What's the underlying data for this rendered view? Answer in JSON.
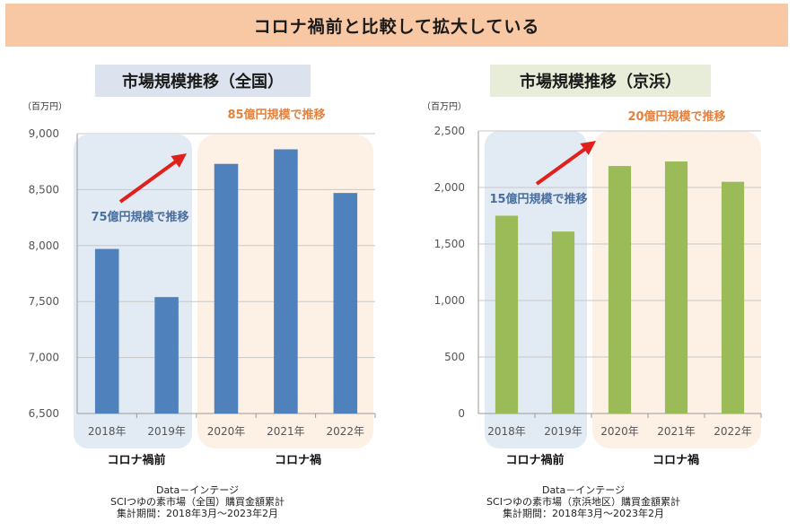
{
  "header": {
    "title": "コロナ禍前と比較して拡大している"
  },
  "colors": {
    "banner_bg": "#f8c8a4",
    "bar_national": "#4f81bd",
    "bar_keihin": "#9bbb59",
    "pre_covid_zone": "#dde6f1",
    "covid_zone": "#fdeee2",
    "blue_note": "#4a6e9c",
    "orange_note": "#e3823e",
    "arrow": "#e0201b"
  },
  "chart_data": [
    {
      "type": "bar",
      "title": "市場規模推移（全国）",
      "unit_label": "（百万円）",
      "categories": [
        "2018年",
        "2019年",
        "2020年",
        "2021年",
        "2022年"
      ],
      "values": [
        7970,
        7540,
        8730,
        8860,
        8470
      ],
      "ylim": [
        6500,
        9000
      ],
      "yticks": [
        6500,
        7000,
        7500,
        8000,
        8500,
        9000
      ],
      "ytick_labels": [
        "6,500",
        "7,000",
        "7,500",
        "8,000",
        "8,500",
        "9,000"
      ],
      "grid": true,
      "annotations": {
        "pre": "75億円規模で推移",
        "post": "85億円規模で推移"
      },
      "period_labels": {
        "pre": "コロナ禍前",
        "post": "コロナ禍"
      },
      "footnote": [
        "Data－インテージ",
        "SCIつゆの素市場（全国）購買金額累計",
        "集計期間：2018年3月～2023年2月"
      ]
    },
    {
      "type": "bar",
      "title": "市場規模推移（京浜）",
      "unit_label": "（百万円）",
      "categories": [
        "2018年",
        "2019年",
        "2020年",
        "2021年",
        "2022年"
      ],
      "values": [
        1750,
        1610,
        2190,
        2230,
        2050
      ],
      "ylim": [
        0,
        2500
      ],
      "yticks": [
        0,
        500,
        1000,
        1500,
        2000,
        2500
      ],
      "ytick_labels": [
        "0",
        "500",
        "1,000",
        "1,500",
        "2,000",
        "2,500"
      ],
      "grid": true,
      "annotations": {
        "pre": "15億円規模で推移",
        "post": "20億円規模で推移"
      },
      "period_labels": {
        "pre": "コロナ禍前",
        "post": "コロナ禍"
      },
      "footnote": [
        "Data－インテージ",
        "SCIつゆの素市場（京浜地区）購買金額累計",
        "集計期間：2018年3月～2023年2月"
      ]
    }
  ]
}
